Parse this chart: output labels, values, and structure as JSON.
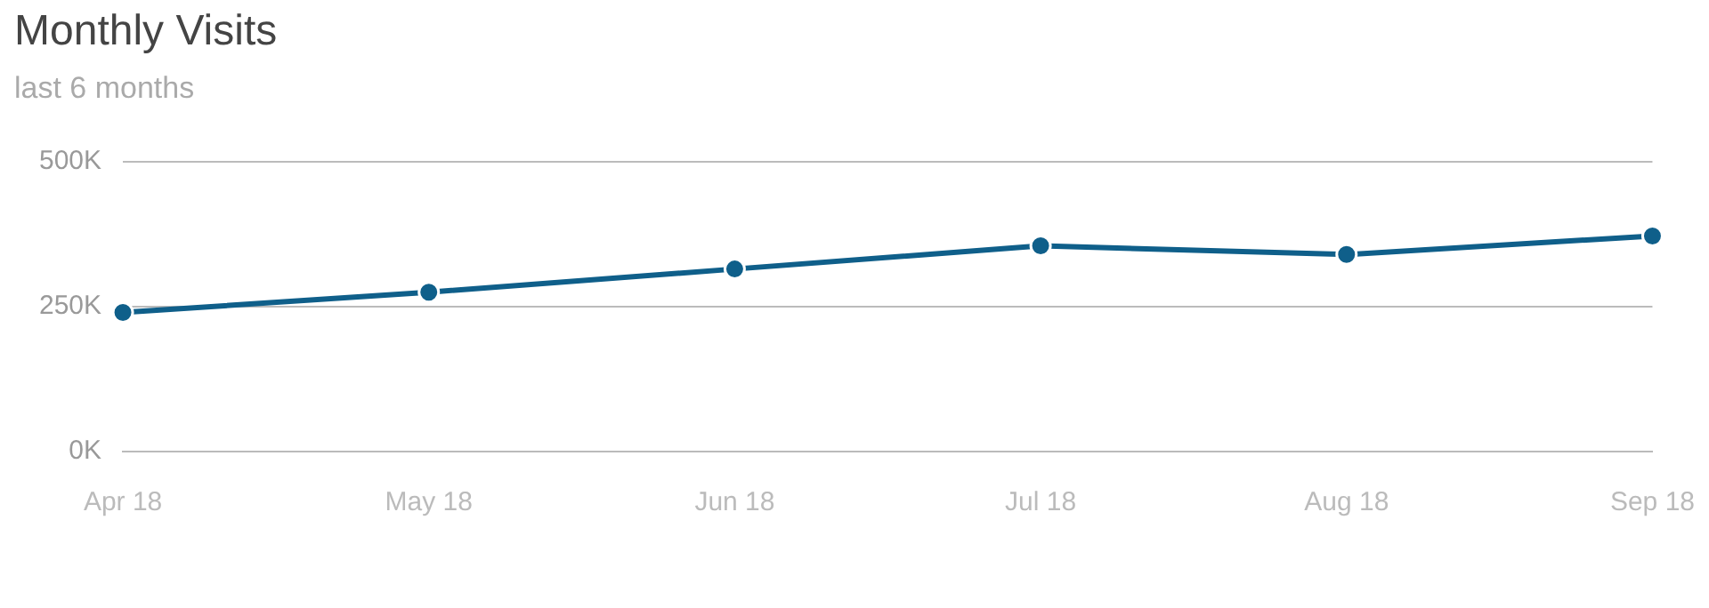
{
  "chart_data": {
    "type": "line",
    "title": "Monthly Visits",
    "subtitle": "last 6 months",
    "categories": [
      "Apr 18",
      "May 18",
      "Jun 18",
      "Jul 18",
      "Aug 18",
      "Sep 18"
    ],
    "series": [
      {
        "color": "#0f5f8a",
        "values": [
          240,
          275,
          315,
          355,
          340,
          372
        ]
      }
    ],
    "ylim": [
      0,
      500
    ],
    "yticks": [
      {
        "value": 0,
        "label": "0K"
      },
      {
        "value": 250,
        "label": "250K"
      },
      {
        "value": 500,
        "label": "500K"
      }
    ],
    "grid": "y",
    "legend": false,
    "marker": "circle",
    "line_style": "solid"
  }
}
